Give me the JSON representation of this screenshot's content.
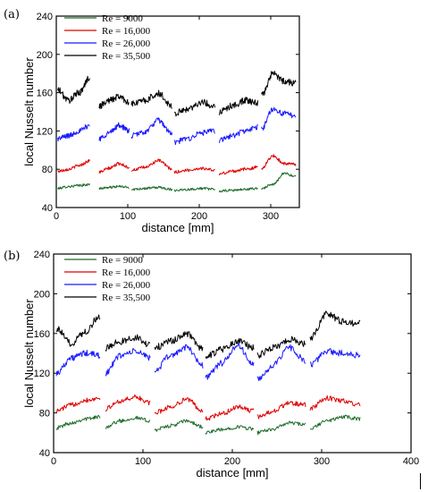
{
  "chart_data": [
    {
      "type": "line",
      "panel_label": "(a)",
      "xlabel": "distance [mm]",
      "ylabel": "local Nusselt number",
      "xlim": [
        0,
        340
      ],
      "ylim": [
        40,
        240
      ],
      "xticks": [
        0,
        100,
        200,
        300
      ],
      "yticks": [
        40,
        80,
        120,
        160,
        200,
        240
      ],
      "grid": false,
      "legend": "top-left",
      "segments_x": [
        [
          2,
          47
        ],
        [
          60,
          102
        ],
        [
          105,
          162
        ],
        [
          165,
          222
        ],
        [
          228,
          282
        ],
        [
          287,
          335
        ]
      ],
      "series": [
        {
          "name": "Re = 9000",
          "color": "#1f6b2a",
          "noise": 0.8,
          "segments": [
            [
              60,
              62,
              63,
              64
            ],
            [
              60,
              61,
              62,
              61
            ],
            [
              59,
              60,
              61,
              59
            ],
            [
              58,
              59,
              60,
              59
            ],
            [
              57,
              58,
              59,
              60
            ],
            [
              60,
              64,
              76,
              72
            ]
          ]
        },
        {
          "name": "Re = 16,000",
          "color": "#e00000",
          "noise": 1.0,
          "segments": [
            [
              78,
              80,
              84,
              89
            ],
            [
              77,
              81,
              86,
              82
            ],
            [
              79,
              82,
              89,
              80
            ],
            [
              77,
              79,
              81,
              79
            ],
            [
              75,
              78,
              80,
              82
            ],
            [
              81,
              94,
              86,
              85
            ]
          ]
        },
        {
          "name": "Re = 26,000",
          "color": "#1a1aff",
          "noise": 1.8,
          "segments": [
            [
              112,
              115,
              120,
              126
            ],
            [
              112,
              118,
              126,
              120
            ],
            [
              115,
              119,
              131,
              117
            ],
            [
              108,
              112,
              118,
              120
            ],
            [
              110,
              115,
              120,
              124
            ],
            [
              122,
              143,
              138,
              136
            ]
          ]
        },
        {
          "name": "Re = 35,500",
          "color": "#000000",
          "noise": 2.2,
          "segments": [
            [
              163,
              152,
              160,
              176
            ],
            [
              146,
              152,
              156,
              150
            ],
            [
              148,
              152,
              159,
              146
            ],
            [
              138,
              143,
              150,
              146
            ],
            [
              140,
              146,
              152,
              149
            ],
            [
              157,
              180,
              172,
              170
            ]
          ]
        }
      ]
    },
    {
      "type": "line",
      "panel_label": "(b)",
      "xlabel": "distance [mm]",
      "ylabel": "local Nusselt number",
      "xlim": [
        0,
        400
      ],
      "ylim": [
        40,
        240
      ],
      "xticks": [
        0,
        100,
        200,
        300,
        400
      ],
      "yticks": [
        40,
        80,
        120,
        160,
        200,
        240
      ],
      "grid": false,
      "legend": "top-left",
      "segments_x": [
        [
          3,
          52
        ],
        [
          58,
          108
        ],
        [
          113,
          167
        ],
        [
          170,
          224
        ],
        [
          228,
          282
        ],
        [
          287,
          343
        ]
      ],
      "series": [
        {
          "name": "Re = 9000",
          "color": "#1f6b2a",
          "noise": 1.2,
          "segments": [
            [
              65,
              70,
              74,
              76
            ],
            [
              66,
              72,
              75,
              72
            ],
            [
              63,
              67,
              72,
              66
            ],
            [
              60,
              63,
              66,
              64
            ],
            [
              60,
              64,
              70,
              68
            ],
            [
              64,
              72,
              76,
              74
            ]
          ]
        },
        {
          "name": "Re = 16,000",
          "color": "#e00000",
          "noise": 1.5,
          "segments": [
            [
              82,
              88,
              93,
              95
            ],
            [
              84,
              92,
              96,
              90
            ],
            [
              80,
              86,
              94,
              82
            ],
            [
              74,
              79,
              86,
              82
            ],
            [
              76,
              82,
              90,
              88
            ],
            [
              84,
              95,
              92,
              88
            ]
          ]
        },
        {
          "name": "Re = 26,000",
          "color": "#1a1aff",
          "noise": 2.0,
          "segments": [
            [
              120,
              135,
              140,
              138
            ],
            [
              120,
              138,
              142,
              136
            ],
            [
              122,
              138,
              146,
              128
            ],
            [
              116,
              130,
              148,
              128
            ],
            [
              114,
              128,
              146,
              132
            ],
            [
              128,
              142,
              140,
              138
            ]
          ]
        },
        {
          "name": "Re = 35,500",
          "color": "#000000",
          "noise": 2.2,
          "segments": [
            [
              165,
              150,
              162,
              178
            ],
            [
              145,
              152,
              156,
              148
            ],
            [
              146,
              152,
              160,
              144
            ],
            [
              136,
              144,
              152,
              146
            ],
            [
              138,
              146,
              154,
              150
            ],
            [
              155,
              180,
              172,
              170
            ]
          ]
        }
      ]
    }
  ]
}
